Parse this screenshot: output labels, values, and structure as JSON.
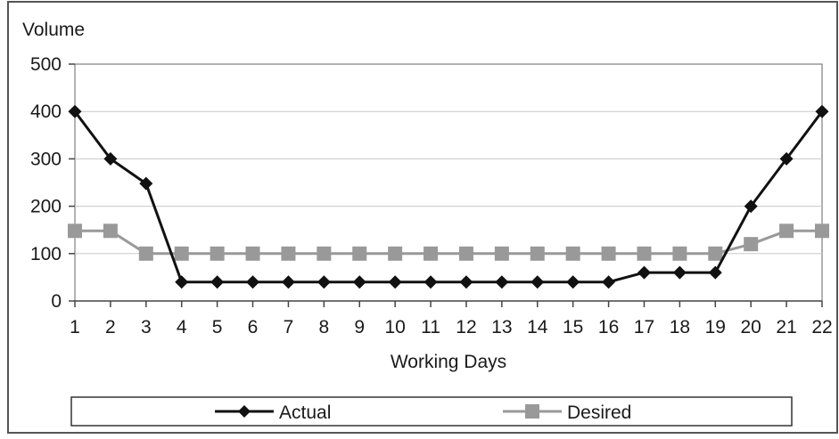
{
  "chart_data": {
    "type": "line",
    "ylabel": "Volume",
    "xlabel": "Working Days",
    "categories": [
      "1",
      "2",
      "3",
      "4",
      "5",
      "6",
      "7",
      "8",
      "9",
      "10",
      "11",
      "12",
      "13",
      "14",
      "15",
      "16",
      "17",
      "18",
      "19",
      "20",
      "21",
      "22"
    ],
    "ylim": [
      0,
      500
    ],
    "yticks": [
      0,
      100,
      200,
      300,
      400,
      500
    ],
    "grid": true,
    "legend_position": "bottom",
    "series": [
      {
        "name": "Actual",
        "color": "#111111",
        "marker": "diamond",
        "values": [
          400,
          300,
          248,
          40,
          40,
          40,
          40,
          40,
          40,
          40,
          40,
          40,
          40,
          40,
          40,
          40,
          60,
          60,
          60,
          200,
          300,
          400
        ]
      },
      {
        "name": "Desired",
        "color": "#999999",
        "marker": "square",
        "values": [
          148,
          148,
          100,
          100,
          100,
          100,
          100,
          100,
          100,
          100,
          100,
          100,
          100,
          100,
          100,
          100,
          100,
          100,
          100,
          120,
          148,
          148
        ]
      }
    ]
  }
}
